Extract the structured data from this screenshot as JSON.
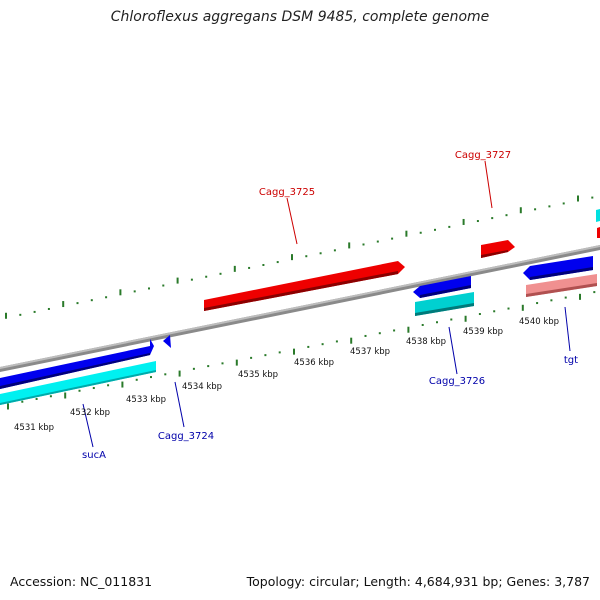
{
  "title": "Chloroflexus aggregans DSM 9485, complete genome",
  "footer": {
    "accession": "Accession: NC_011831",
    "topology": "Topology: circular; Length: 4,684,931 bp; Genes: 3,787"
  },
  "map": {
    "kbp_ticks": [
      "4531 kbp",
      "4532 kbp",
      "4533 kbp",
      "4534 kbp",
      "4535 kbp",
      "4536 kbp",
      "4537 kbp",
      "4538 kbp",
      "4539 kbp",
      "4540 kbp"
    ],
    "genes": [
      {
        "label": "Cagg_3725",
        "color": "#cc0000",
        "track": "forward"
      },
      {
        "label": "Cagg_3727",
        "color": "#cc0000",
        "track": "forward"
      },
      {
        "label": "Cagg_3726",
        "color": "#0000aa",
        "track": "reverse"
      },
      {
        "label": "sucA",
        "color": "#0000aa",
        "track": "reverse"
      },
      {
        "label": "Cagg_3724",
        "color": "#0000aa",
        "track": "reverse"
      },
      {
        "label": "tgt",
        "color": "#0000aa",
        "track": "reverse"
      }
    ],
    "colors": {
      "backbone": "#808080",
      "forward_cds": "#e60000",
      "reverse_cds": "#0000e6",
      "cyan_feature": "#00e5e5",
      "teal_feature": "#00b3b3",
      "pink_feature": "#f08080",
      "tick": "#227722"
    }
  }
}
